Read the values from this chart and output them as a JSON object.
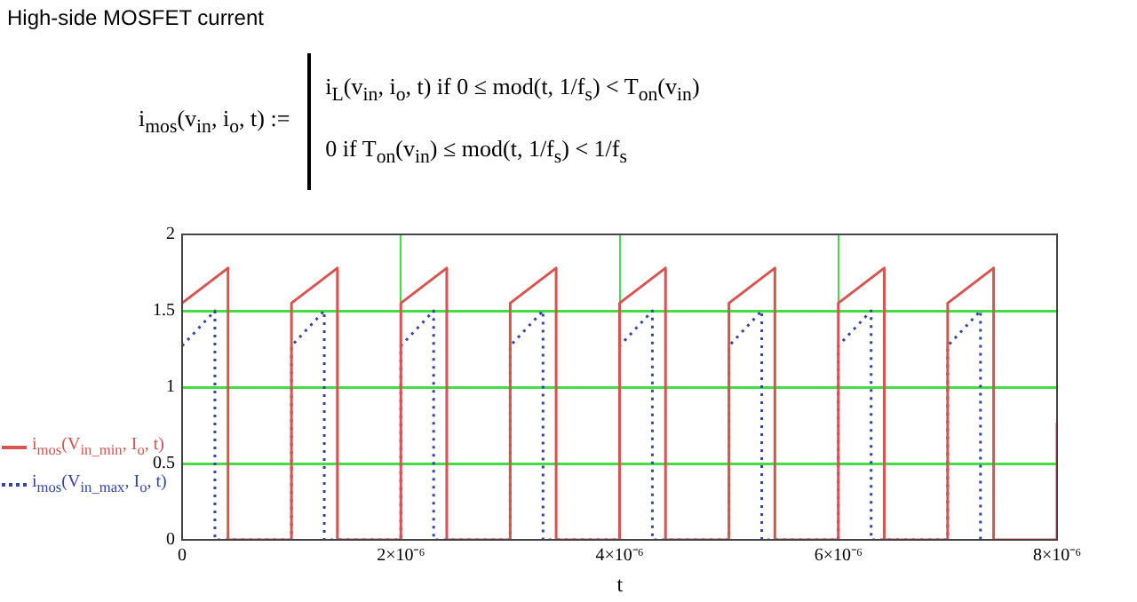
{
  "chart_data": {
    "type": "line",
    "title": "High-side MOSFET current",
    "xlabel": "t",
    "annotations": [
      "i$_{mos}$(v$_{in}$, i$_{o}$, t) :=",
      "i$_{L}$(v$_{in}$, i$_{o}$, t)  if  0 ≤ mod(t, 1/f$_{s}$) < T$_{on}$(v$_{in}$)",
      "0  if  T$_{on}$(v$_{in}$) ≤ mod(t, 1/f$_{s}$) < 1/f$_{s}$"
    ],
    "series": [
      {
        "name": "i$_{mos}$(V$_{in_min}$, I$_{o}$, t)",
        "color": "#d9534f",
        "line_style": "solid",
        "x": [
          0,
          4.2e-07,
          4.2e-07,
          1e-06,
          1e-06,
          1.42e-06,
          1.42e-06,
          2e-06,
          2e-06,
          2.42e-06,
          2.42e-06,
          3e-06,
          3e-06,
          3.42e-06,
          3.42e-06,
          4e-06,
          4e-06,
          4.42e-06,
          4.42e-06,
          5e-06,
          5e-06,
          5.42e-06,
          5.42e-06,
          6e-06,
          6e-06,
          6.42e-06,
          6.42e-06,
          7e-06,
          7e-06,
          7.42e-06,
          7.42e-06,
          8e-06,
          8e-06
        ],
        "values": [
          1.55,
          1.78,
          0,
          0,
          1.55,
          1.78,
          0,
          0,
          1.55,
          1.78,
          0,
          0,
          1.55,
          1.78,
          0,
          0,
          1.55,
          1.78,
          0,
          0,
          1.55,
          1.78,
          0,
          0,
          1.55,
          1.78,
          0,
          0,
          1.55,
          1.78,
          0,
          0,
          0.77
        ]
      },
      {
        "name": "i$_{mos}$(V$_{in_max}$, I$_{o}$, t)",
        "color": "#3344aa",
        "line_style": "dotted",
        "x": [
          0,
          3e-07,
          3e-07,
          1e-06,
          1e-06,
          1.3e-06,
          1.3e-06,
          2e-06,
          2e-06,
          2.3e-06,
          2.3e-06,
          3e-06,
          3e-06,
          3.3e-06,
          3.3e-06,
          4e-06,
          4e-06,
          4.3e-06,
          4.3e-06,
          5e-06,
          5e-06,
          5.3e-06,
          5.3e-06,
          6e-06,
          6e-06,
          6.3e-06,
          6.3e-06,
          7e-06,
          7e-06,
          7.3e-06,
          7.3e-06
        ],
        "values": [
          1.27,
          1.5,
          0,
          0,
          1.27,
          1.5,
          0,
          0,
          1.27,
          1.5,
          0,
          0,
          1.27,
          1.5,
          0,
          0,
          1.27,
          1.5,
          0,
          0,
          1.27,
          1.5,
          0,
          0,
          1.27,
          1.5,
          0,
          0,
          1.27,
          1.5,
          0
        ]
      }
    ],
    "xlim": [
      0,
      8e-06
    ],
    "xticks": [
      0,
      {
        "value": 2e-06,
        "label": "2×10⁻⁶"
      },
      {
        "value": 4e-06,
        "label": "4×10⁻⁶"
      },
      {
        "value": 6e-06,
        "label": "6×10⁻⁶"
      },
      {
        "value": 8e-06,
        "label": "8×10⁻⁶"
      }
    ],
    "ylim": [
      0,
      2
    ],
    "yticks": [
      0,
      0.5,
      1,
      1.5,
      2
    ],
    "grid": true,
    "legend": "left",
    "marker": "none"
  }
}
